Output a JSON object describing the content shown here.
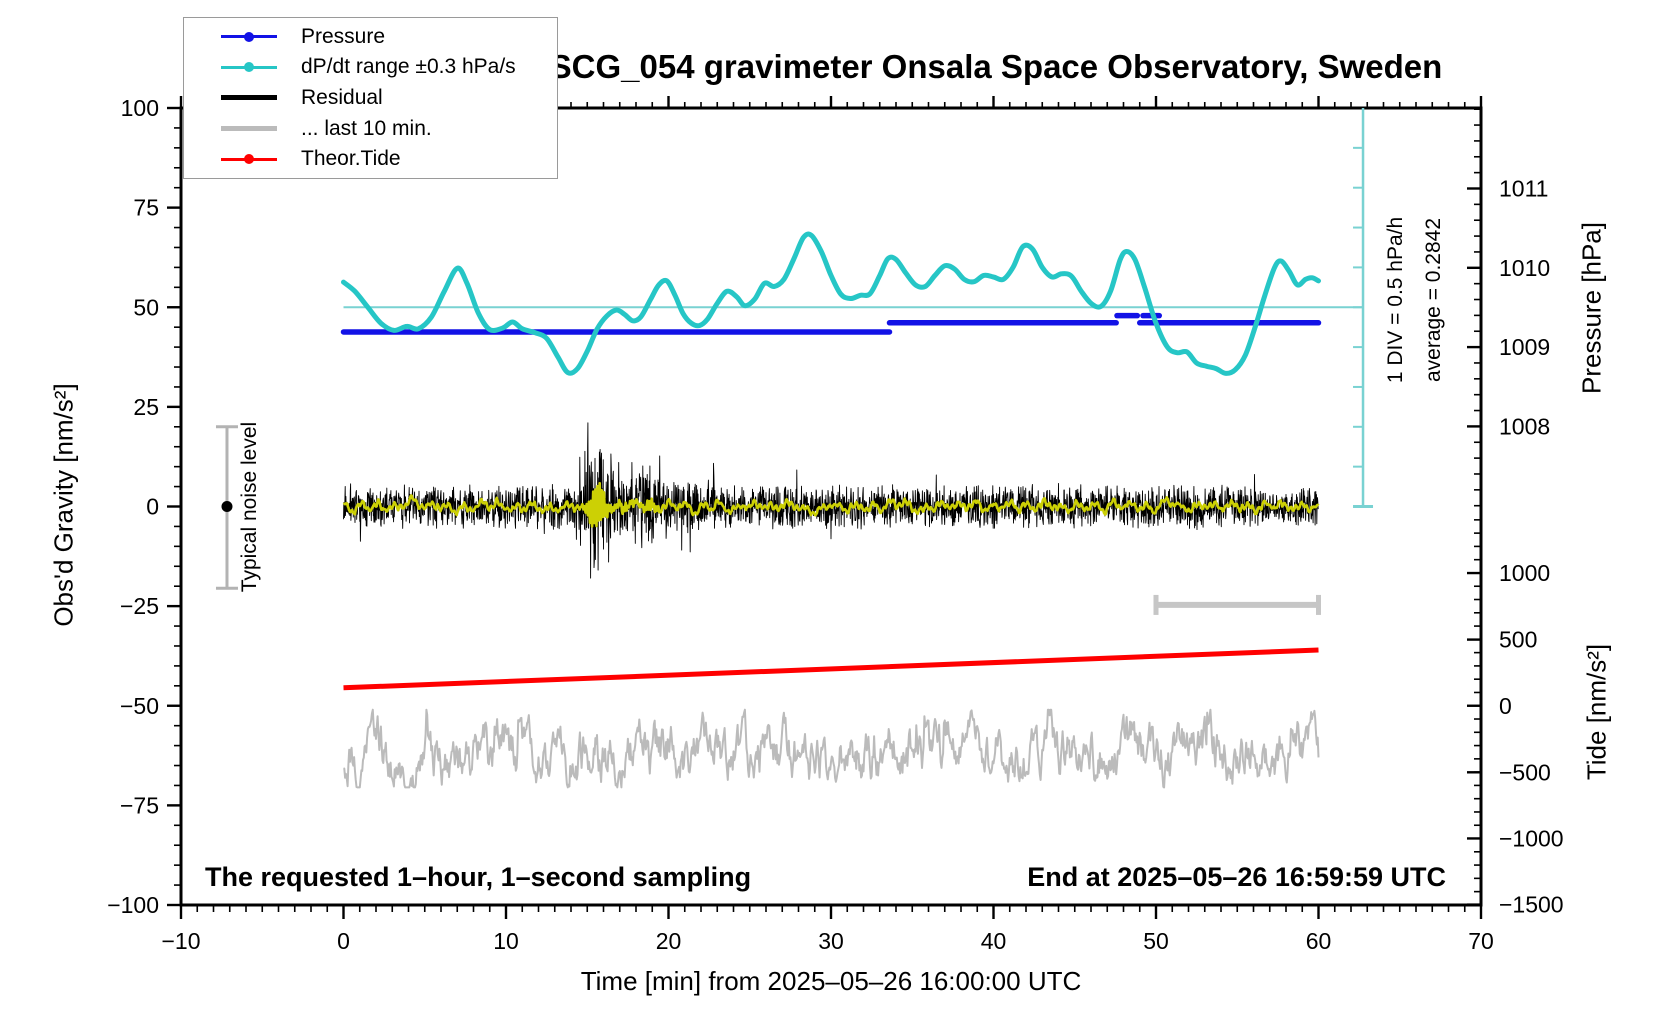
{
  "legend": {
    "items": [
      {
        "label": "Pressure",
        "color": "#1212e6",
        "marker": "line-dot"
      },
      {
        "label": "dP/dt range ±0.3 hPa/s",
        "color": "#26c6c6",
        "marker": "line-dot"
      },
      {
        "label": "Residual",
        "color": "#000000",
        "marker": "line"
      },
      {
        "label": "... last 10 min.",
        "color": "#bbbbbb",
        "marker": "line"
      },
      {
        "label": "Theor.Tide",
        "color": "#ff0000",
        "marker": "line-dot"
      }
    ]
  },
  "annotations": {
    "bottom_left": "The requested 1–hour, 1–second sampling",
    "bottom_right": "End at 2025–05–26 16:59:59 UTC",
    "div_scale": "1 DIV = 0.5 hPa/h",
    "average": "average = 0.2842",
    "noise_level": "Typical noise level"
  },
  "chart_data": {
    "type": "line",
    "title": "SCG_054 gravimeter Onsala Space Observatory, Sweden",
    "x_axis": {
      "title": "Time [min] from 2025–05–26 16:00:00 UTC",
      "min": -10,
      "max": 70,
      "minor_step": 1,
      "majors": [
        {
          "label": "−10",
          "value": -10
        },
        {
          "label": "0",
          "value": 0
        },
        {
          "label": "10",
          "value": 10
        },
        {
          "label": "20",
          "value": 20
        },
        {
          "label": "30",
          "value": 30
        },
        {
          "label": "40",
          "value": 40
        },
        {
          "label": "50",
          "value": 50
        },
        {
          "label": "60",
          "value": 60
        },
        {
          "label": "70",
          "value": 70
        }
      ]
    },
    "y_axis_left": {
      "title": "Obs'd Gravity [nm/s²]",
      "min": -100,
      "max": 100,
      "minor_step": 5,
      "majors": [
        {
          "label": "100",
          "value": 100
        },
        {
          "label": "75",
          "value": 75
        },
        {
          "label": "50",
          "value": 50
        },
        {
          "label": "25",
          "value": 25
        },
        {
          "label": "0",
          "value": 0
        },
        {
          "label": "−25",
          "value": -25
        },
        {
          "label": "−50",
          "value": -50
        },
        {
          "label": "−75",
          "value": -75
        },
        {
          "label": "−100",
          "value": -100
        }
      ]
    },
    "y_axis_right_pressure": {
      "title": "Pressure [hPa]",
      "minor_step_v": 3.98,
      "minor_top_v": 99.7,
      "minor_bottom_v": -2,
      "majors": [
        {
          "label": "1011",
          "v": 79.8
        },
        {
          "label": "1010",
          "v": 59.9
        },
        {
          "label": "1009",
          "v": 40.0
        },
        {
          "label": "1008",
          "v": 20.1
        }
      ]
    },
    "y_axis_right_tide": {
      "title": "Tide [nm/s²]",
      "minor_step_v": 3.332,
      "minor_top_v": -3.35,
      "minor_bottom_v": -100,
      "majors": [
        {
          "label": "1000",
          "v": -16.7
        },
        {
          "label": "500",
          "v": -33.4
        },
        {
          "label": "0",
          "v": -50.0
        },
        {
          "label": "−500",
          "v": -66.7
        },
        {
          "label": "−1000",
          "v": -83.3
        },
        {
          "label": "−1500",
          "v": -99.9
        }
      ]
    },
    "series": {
      "dpdt_reference_line": {
        "v": 50,
        "x_range": [
          0,
          62.74
        ],
        "color": "#79d2d2",
        "width": 2
      },
      "dpdt_scale_bar": {
        "x": 62.74,
        "v_range": [
          0,
          100
        ],
        "div_step_v": 10,
        "color": "#79d2d2",
        "note": "1 DIV = 0.5 hPa/h, average = 0.2842"
      },
      "dpdt": {
        "name": "dP/dt range ±0.3 hPa/s",
        "color": "#26c6c6",
        "width": 5,
        "points": [
          [
            0,
            56.3
          ],
          [
            0.7,
            54
          ],
          [
            1.5,
            50
          ],
          [
            2.3,
            46
          ],
          [
            3.1,
            44.2
          ],
          [
            3.9,
            45.2
          ],
          [
            4.6,
            44.6
          ],
          [
            5.4,
            47.5
          ],
          [
            6.2,
            54
          ],
          [
            7.0,
            59.8
          ],
          [
            7.6,
            56
          ],
          [
            8.3,
            48.5
          ],
          [
            9.0,
            44.4
          ],
          [
            9.8,
            44.8
          ],
          [
            10.4,
            46.3
          ],
          [
            11.0,
            44.6
          ],
          [
            11.8,
            43.6
          ],
          [
            12.5,
            42.2
          ],
          [
            13.2,
            37.5
          ],
          [
            13.8,
            33.6
          ],
          [
            14.4,
            34.6
          ],
          [
            15.0,
            39
          ],
          [
            15.6,
            44.5
          ],
          [
            16.2,
            47.8
          ],
          [
            16.8,
            49.3
          ],
          [
            17.3,
            48.2
          ],
          [
            17.8,
            46.6
          ],
          [
            18.3,
            47.6
          ],
          [
            18.9,
            52
          ],
          [
            19.4,
            55.6
          ],
          [
            19.9,
            56.6
          ],
          [
            20.4,
            53
          ],
          [
            20.9,
            48.4
          ],
          [
            21.4,
            46
          ],
          [
            21.9,
            45.4
          ],
          [
            22.4,
            47
          ],
          [
            23.0,
            51
          ],
          [
            23.6,
            54
          ],
          [
            24.2,
            52.6
          ],
          [
            24.7,
            50.4
          ],
          [
            25.3,
            52
          ],
          [
            25.9,
            56
          ],
          [
            26.5,
            55.2
          ],
          [
            27.1,
            57
          ],
          [
            27.7,
            62
          ],
          [
            28.3,
            67.5
          ],
          [
            28.8,
            68
          ],
          [
            29.4,
            64
          ],
          [
            30.0,
            58
          ],
          [
            30.6,
            53.3
          ],
          [
            31.2,
            52.2
          ],
          [
            31.8,
            53
          ],
          [
            32.4,
            53.4
          ],
          [
            33.0,
            58
          ],
          [
            33.5,
            62.2
          ],
          [
            34.0,
            62
          ],
          [
            34.6,
            58.6
          ],
          [
            35.2,
            55.6
          ],
          [
            35.8,
            55.2
          ],
          [
            36.4,
            58
          ],
          [
            37.0,
            60.4
          ],
          [
            37.6,
            59.6
          ],
          [
            38.2,
            57
          ],
          [
            38.8,
            56.4
          ],
          [
            39.4,
            58
          ],
          [
            40.0,
            57.6
          ],
          [
            40.6,
            57
          ],
          [
            41.2,
            60
          ],
          [
            41.8,
            65.2
          ],
          [
            42.4,
            64.6
          ],
          [
            43.0,
            60
          ],
          [
            43.6,
            57.6
          ],
          [
            44.2,
            58.4
          ],
          [
            44.8,
            57.8
          ],
          [
            45.4,
            54
          ],
          [
            46.0,
            51
          ],
          [
            46.6,
            50.2
          ],
          [
            47.2,
            54
          ],
          [
            47.8,
            62
          ],
          [
            48.2,
            64
          ],
          [
            48.7,
            62
          ],
          [
            49.3,
            55
          ],
          [
            50.0,
            46
          ],
          [
            50.7,
            40
          ],
          [
            51.3,
            38.6
          ],
          [
            51.9,
            38.8
          ],
          [
            52.5,
            36
          ],
          [
            53.1,
            35.2
          ],
          [
            53.7,
            34.6
          ],
          [
            54.3,
            33.4
          ],
          [
            54.9,
            34.4
          ],
          [
            55.5,
            38
          ],
          [
            56.1,
            45
          ],
          [
            56.7,
            53
          ],
          [
            57.3,
            60
          ],
          [
            57.7,
            61.6
          ],
          [
            58.2,
            59
          ],
          [
            58.7,
            55.6
          ],
          [
            59.2,
            57
          ],
          [
            59.6,
            57.4
          ],
          [
            60,
            56.6
          ]
        ]
      },
      "pressure": {
        "name": "Pressure",
        "color": "#1212e6",
        "width": 5.5,
        "segments": [
          {
            "v": 43.8,
            "x": [
              0,
              33.6
            ]
          },
          {
            "v": 46.1,
            "x": [
              33.6,
              47.55
            ]
          },
          {
            "v": 46.1,
            "x": [
              49.0,
              60
            ]
          }
        ],
        "dashes": [
          {
            "v": 47.9,
            "x": [
              47.6,
              48.85
            ]
          },
          {
            "v": 47.9,
            "x": [
              49.2,
              50.2
            ]
          }
        ]
      },
      "residual": {
        "name": "Residual",
        "color": "#000000",
        "width": 0.9,
        "baseline_v": 0,
        "x_range": [
          0,
          60
        ],
        "seed": 1357911,
        "base_amp": 4.8,
        "clip": 21,
        "burst": {
          "start": 14.05,
          "peak": 15.05,
          "decay_tau": 2.4,
          "amp": 13.5,
          "end": 23
        },
        "aftershock": {
          "center": 18.8,
          "sigma": 0.7,
          "amp": 3.2
        }
      },
      "residual_filtered": {
        "color": "#ccd005",
        "width": 2.6,
        "seed": 24680,
        "burst_center": 15.6,
        "burst_amp": 4.8,
        "osc_period_min": 0.1333
      },
      "last10": {
        "name": "... last 10 min.",
        "color": "#bbbbbb",
        "width": 2,
        "baseline_v": -62.3,
        "x_range": [
          0,
          60
        ],
        "seed": 97531
      },
      "last10_bar": {
        "v": -24.7,
        "x": [
          50,
          60
        ],
        "color": "#c6c6c6",
        "width": 6
      },
      "theor_tide": {
        "name": "Theor.Tide",
        "color": "#ff0000",
        "width": 5,
        "points": [
          [
            0,
            -45.5
          ],
          [
            60,
            -36.0
          ]
        ]
      },
      "noise_level_bar": {
        "x": -7.17,
        "v_range": [
          -20.5,
          20.0
        ],
        "dot_v": 0,
        "color": "#b3b3b3",
        "dot_color": "#000000"
      }
    }
  }
}
